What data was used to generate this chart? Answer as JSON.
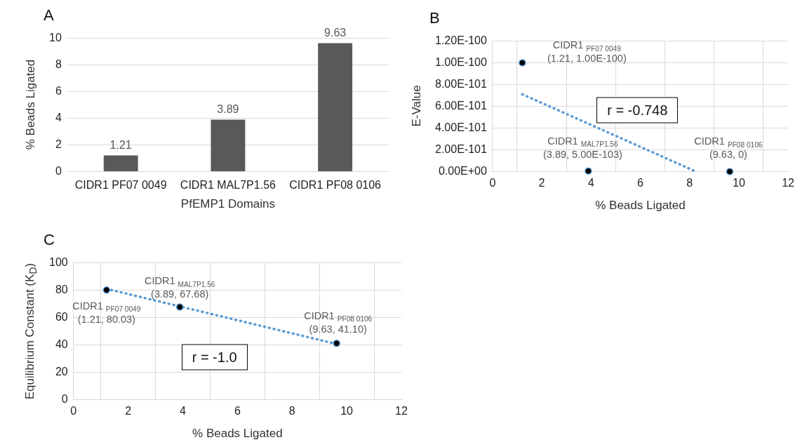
{
  "chart_data": [
    {
      "type": "bar",
      "title": "A",
      "xlabel": "PfEMP1 Domains",
      "ylabel": "% Beads Ligated",
      "categories": [
        "CIDR1 PF07 0049",
        "CIDR1 MAL7P1.56",
        "CIDR1 PF08 0106"
      ],
      "values": [
        1.21,
        3.89,
        9.63
      ],
      "color": "#595959",
      "ylim": [
        0,
        10
      ],
      "yticks": [
        0,
        2,
        4,
        6,
        8,
        10
      ],
      "grid": "y",
      "data_labels": true
    },
    {
      "type": "scatter",
      "title": "B",
      "xlabel": "% Beads Ligated",
      "ylabel": "E-Value",
      "xlim": [
        0,
        12
      ],
      "xticks": [
        0,
        2,
        4,
        6,
        8,
        10,
        12
      ],
      "ylim": [
        0,
        1.2e-100
      ],
      "yticks": [
        {
          "value": 0,
          "label": "0.00E+00"
        },
        {
          "value": 2e-101,
          "label": "2.00E-101"
        },
        {
          "value": 4e-101,
          "label": "4.00E-101"
        },
        {
          "value": 6e-101,
          "label": "6.00E-101"
        },
        {
          "value": 8e-101,
          "label": "8.00E-101"
        },
        {
          "value": 1e-100,
          "label": "1.00E-100"
        },
        {
          "value": 1.2e-100,
          "label": "1.20E-100"
        }
      ],
      "grid": true,
      "marker": "circle",
      "series": [
        {
          "type": "scatter",
          "color": "#000000",
          "x": [
            1.21,
            3.89,
            9.63
          ],
          "values": [
            1e-100,
            5e-103,
            0
          ]
        },
        {
          "type": "line",
          "color": "#5b9bd5",
          "line_style": "dotted",
          "marker": "none",
          "x": [
            1.21,
            8.25
          ],
          "values": [
            7.1e-101,
            0
          ]
        }
      ],
      "annotations": [
        {
          "text": "CIDR1 $_{PF07 0049}$\n(1.21, 1.00E-100)",
          "x": 1.21,
          "y": 1e-100
        },
        {
          "text": "CIDR1 $_{MAL7P1.56}$\n(3.89, 5.00E-103)",
          "x": 3.89,
          "y": 5e-103
        },
        {
          "text": "CIDR1 $_{PF08 0106}$\n(9.63, 0)",
          "x": 9.63,
          "y": 0
        },
        "r = -0.748"
      ]
    },
    {
      "type": "scatter",
      "title": "C",
      "xlabel": "% Beads Ligated",
      "ylabel": "Equilibrium Constant (K$_{D}$)",
      "xlim": [
        0,
        12
      ],
      "xticks": [
        0,
        2,
        4,
        6,
        8,
        10,
        12
      ],
      "ylim": [
        0,
        100
      ],
      "yticks": [
        0,
        20,
        40,
        60,
        80,
        100
      ],
      "grid": true,
      "marker": "circle",
      "series": [
        {
          "type": "scatter",
          "color": "#000000",
          "x": [
            1.21,
            3.89,
            9.63
          ],
          "values": [
            80.03,
            67.68,
            41.1
          ]
        },
        {
          "type": "line",
          "color": "#5b9bd5",
          "line_style": "dotted",
          "marker": "none",
          "x": [
            1.21,
            9.63
          ],
          "values": [
            80.9,
            40.6
          ]
        }
      ],
      "annotations": [
        {
          "text": "CIDR1 $_{PF07 0049}$\n(1.21, 80.03)",
          "x": 1.21,
          "y": 80.03
        },
        {
          "text": "CIDR1 $_{MAL7P1.56}$\n(3.89, 67.68)",
          "x": 3.89,
          "y": 67.68
        },
        {
          "text": "CIDR1 $_{PF08 0106}$\n(9.63, 41.10)",
          "x": 9.63,
          "y": 41.1
        },
        "r = -1.0"
      ]
    }
  ]
}
